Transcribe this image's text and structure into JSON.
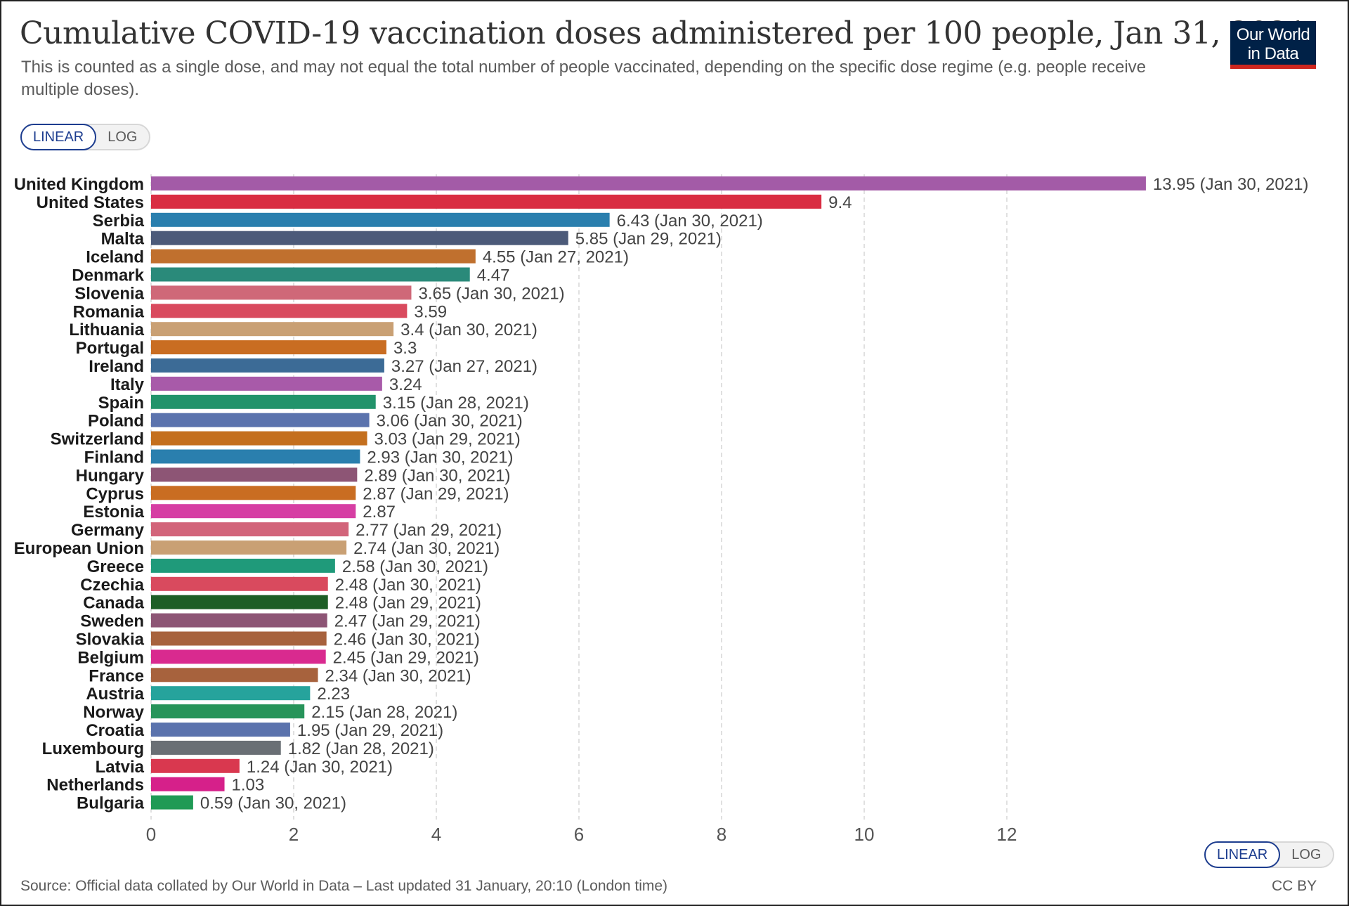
{
  "header": {
    "title": "Cumulative COVID-19 vaccination doses administered per 100 people, Jan 31, 2021",
    "subtitle": "This is counted as a single dose, and may not equal the total number of people vaccinated, depending on the specific dose regime (e.g. people receive multiple doses).",
    "logo_line1": "Our World",
    "logo_line2": "in Data"
  },
  "scale_toggle": {
    "linear_label": "LINEAR",
    "log_label": "LOG",
    "selected": "LINEAR"
  },
  "footer": {
    "source": "Source: Official data collated by Our World in Data – Last updated 31 January, 20:10 (London time)",
    "license": "CC BY"
  },
  "colors": {
    "text": "#333333",
    "muted": "#5b5b5b",
    "accent": "#1d3d8f",
    "logo_bg": "#002147",
    "logo_bar": "#ce261e"
  },
  "chart_data": {
    "type": "bar",
    "orientation": "horizontal",
    "title": "Cumulative COVID-19 vaccination doses administered per 100 people, Jan 31, 2021",
    "xlabel": "",
    "ylabel": "",
    "xlim": [
      0,
      14
    ],
    "xticks": [
      0,
      2,
      4,
      6,
      8,
      10,
      12
    ],
    "grid": "vertical dashed",
    "categories": [
      "United Kingdom",
      "United States",
      "Serbia",
      "Malta",
      "Iceland",
      "Denmark",
      "Slovenia",
      "Romania",
      "Lithuania",
      "Portugal",
      "Ireland",
      "Italy",
      "Spain",
      "Poland",
      "Switzerland",
      "Finland",
      "Hungary",
      "Cyprus",
      "Estonia",
      "Germany",
      "European Union",
      "Greece",
      "Czechia",
      "Canada",
      "Sweden",
      "Slovakia",
      "Belgium",
      "France",
      "Austria",
      "Norway",
      "Croatia",
      "Luxembourg",
      "Latvia",
      "Netherlands",
      "Bulgaria"
    ],
    "values": [
      13.95,
      9.4,
      6.43,
      5.85,
      4.55,
      4.47,
      3.65,
      3.59,
      3.4,
      3.3,
      3.27,
      3.24,
      3.15,
      3.06,
      3.03,
      2.93,
      2.89,
      2.87,
      2.87,
      2.77,
      2.74,
      2.58,
      2.48,
      2.48,
      2.47,
      2.46,
      2.45,
      2.34,
      2.23,
      2.15,
      1.95,
      1.82,
      1.24,
      1.03,
      0.59
    ],
    "labels": [
      "13.95 (Jan 30, 2021)",
      "9.4",
      "6.43 (Jan 30, 2021)",
      "5.85 (Jan 29, 2021)",
      "4.55 (Jan 27, 2021)",
      "4.47",
      "3.65 (Jan 30, 2021)",
      "3.59",
      "3.4 (Jan 30, 2021)",
      "3.3",
      "3.27 (Jan 27, 2021)",
      "3.24",
      "3.15 (Jan 28, 2021)",
      "3.06 (Jan 30, 2021)",
      "3.03 (Jan 29, 2021)",
      "2.93 (Jan 30, 2021)",
      "2.89 (Jan 30, 2021)",
      "2.87 (Jan 29, 2021)",
      "2.87",
      "2.77 (Jan 29, 2021)",
      "2.74 (Jan 30, 2021)",
      "2.58 (Jan 30, 2021)",
      "2.48 (Jan 30, 2021)",
      "2.48 (Jan 29, 2021)",
      "2.47 (Jan 29, 2021)",
      "2.46 (Jan 30, 2021)",
      "2.45 (Jan 29, 2021)",
      "2.34 (Jan 30, 2021)",
      "2.23",
      "2.15 (Jan 28, 2021)",
      "1.95 (Jan 29, 2021)",
      "1.82 (Jan 28, 2021)",
      "1.24 (Jan 30, 2021)",
      "1.03",
      "0.59 (Jan 30, 2021)"
    ],
    "colors": [
      "#a35ba7",
      "#d92d42",
      "#2a7fae",
      "#4c5a79",
      "#c0702e",
      "#2a8a7a",
      "#cf6878",
      "#d94a5e",
      "#c9a074",
      "#c96d22",
      "#3c6b96",
      "#a85aa9",
      "#22936b",
      "#5b73ad",
      "#c46f1e",
      "#2a7fae",
      "#8d5575",
      "#c96d22",
      "#d63ea3",
      "#d2647a",
      "#c9a074",
      "#1f9a7a",
      "#d94a5e",
      "#1d5e26",
      "#8d5575",
      "#a7623d",
      "#d92a8f",
      "#a7623d",
      "#26a39c",
      "#27945a",
      "#5b73ad",
      "#6a6f75",
      "#d9384f",
      "#d6208a",
      "#1f9a55"
    ]
  }
}
